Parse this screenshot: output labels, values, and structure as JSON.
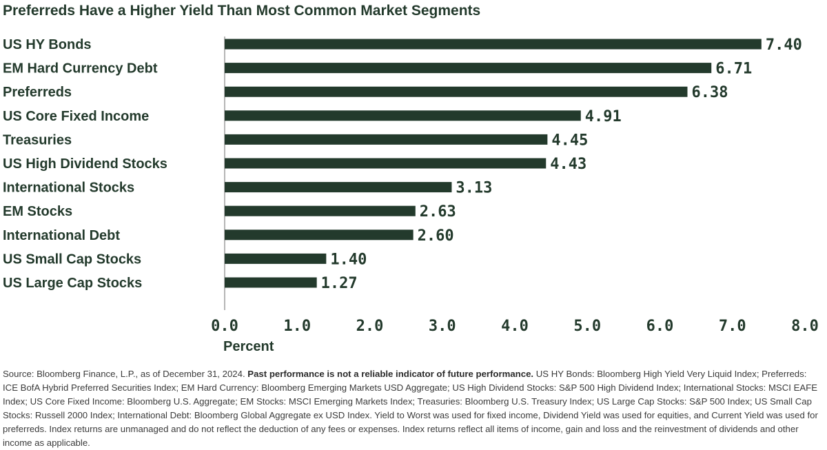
{
  "chart_data": {
    "type": "bar",
    "orientation": "horizontal",
    "title": "Preferreds Have a Higher Yield Than Most Common Market Segments",
    "xlabel": "Percent",
    "ylabel": "",
    "xlim": [
      0,
      8
    ],
    "x_ticks": [
      "0.0",
      "1.0",
      "2.0",
      "3.0",
      "4.0",
      "5.0",
      "6.0",
      "7.0",
      "8.0"
    ],
    "grid": false,
    "categories": [
      "US HY Bonds",
      "EM Hard Currency Debt",
      "Preferreds",
      "US Core Fixed Income",
      "Treasuries",
      "US High Dividend Stocks",
      "International Stocks",
      "EM Stocks",
      "International  Debt",
      "US Small Cap Stocks",
      "US Large Cap Stocks"
    ],
    "values": [
      7.4,
      6.71,
      6.38,
      4.91,
      4.45,
      4.43,
      3.13,
      2.63,
      2.6,
      1.4,
      1.27
    ],
    "value_labels": [
      "7.40",
      "6.71",
      "6.38",
      "4.91",
      "4.45",
      "4.43",
      "3.13",
      "2.63",
      "2.60",
      "1.40",
      "1.27"
    ],
    "colors": {
      "bar": "#233a2c",
      "text": "#233a2c"
    }
  },
  "footnote": {
    "source": "Source: Bloomberg Finance, L.P., as of December 31, 2024. ",
    "bold": "Past performance is not a reliable indicator of future performance.",
    "rest": " US HY Bonds: Bloomberg High Yield Very Liquid Index; Preferreds: ICE BofA Hybrid Preferred Securities Index; EM Hard Currency: Bloomberg Emerging Markets USD Aggregate; US High Dividend Stocks: S&P 500 High Dividend Index; International Stocks: MSCI EAFE Index; US Core Fixed Income: Bloomberg U.S. Aggregate; EM Stocks: MSCI Emerging Markets Index; Treasuries: Bloomberg U.S. Treasury Index; US Large Cap Stocks: S&P 500 Index; US Small Cap Stocks: Russell 2000 Index; International Debt: Bloomberg Global Aggregate ex USD Index. Yield to Worst was used for fixed income, Dividend Yield was used for equities, and Current Yield was used for preferreds. Index returns are unmanaged and do not reflect the deduction of any fees or expenses. Index returns reflect all items of income, gain and loss and the reinvestment of dividends and other income as applicable."
  }
}
